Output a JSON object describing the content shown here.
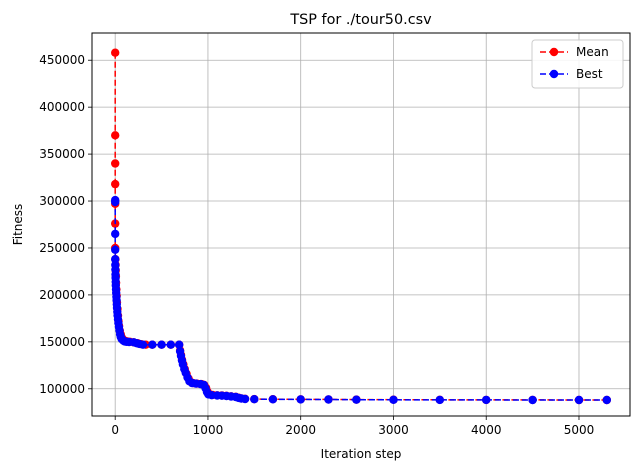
{
  "chart_data": {
    "type": "line",
    "title": "TSP for ./tour50.csv",
    "xlabel": "Iteration step",
    "ylabel": "Fitness",
    "xlim": [
      -250,
      5550
    ],
    "ylim": [
      71000,
      479000
    ],
    "xticks": [
      0,
      1000,
      2000,
      3000,
      4000,
      5000
    ],
    "xtick_labels": [
      "0",
      "1000",
      "2000",
      "3000",
      "4000",
      "5000"
    ],
    "yticks": [
      100000,
      150000,
      200000,
      250000,
      300000,
      350000,
      400000,
      450000
    ],
    "ytick_labels": [
      "100000",
      "150000",
      "200000",
      "250000",
      "300000",
      "350000",
      "400000",
      "450000"
    ],
    "grid": true,
    "legend_position": "top-right",
    "series": [
      {
        "name": "Mean",
        "color": "#ff0000",
        "line_style": "dashed",
        "marker": "circle",
        "points": [
          [
            0,
            458000
          ],
          [
            0,
            370000
          ],
          [
            0,
            340000
          ],
          [
            0,
            318000
          ],
          [
            0,
            297000
          ],
          [
            0,
            276000
          ],
          [
            0,
            250000
          ],
          [
            2,
            238000
          ],
          [
            4,
            232000
          ],
          [
            6,
            226000
          ],
          [
            8,
            220000
          ],
          [
            10,
            213000
          ],
          [
            13,
            206000
          ],
          [
            16,
            199000
          ],
          [
            20,
            192000
          ],
          [
            25,
            185000
          ],
          [
            30,
            178000
          ],
          [
            36,
            172000
          ],
          [
            42,
            167000
          ],
          [
            50,
            162000
          ],
          [
            60,
            158000
          ],
          [
            75,
            154000
          ],
          [
            90,
            152000
          ],
          [
            110,
            151000
          ],
          [
            130,
            150500
          ],
          [
            160,
            150000
          ],
          [
            200,
            149500
          ],
          [
            240,
            148500
          ],
          [
            280,
            147500
          ],
          [
            330,
            147000
          ],
          [
            400,
            147000
          ],
          [
            500,
            147000
          ],
          [
            600,
            147000
          ],
          [
            690,
            147000
          ],
          [
            700,
            141000
          ],
          [
            710,
            136000
          ],
          [
            720,
            131000
          ],
          [
            735,
            126000
          ],
          [
            750,
            121000
          ],
          [
            770,
            116000
          ],
          [
            790,
            111000
          ],
          [
            810,
            107500
          ],
          [
            840,
            106000
          ],
          [
            880,
            105500
          ],
          [
            930,
            105000
          ],
          [
            960,
            104000
          ],
          [
            980,
            101000
          ],
          [
            995,
            97000
          ],
          [
            1010,
            94500
          ],
          [
            1050,
            93500
          ],
          [
            1100,
            93000
          ],
          [
            1150,
            92800
          ],
          [
            1200,
            92500
          ],
          [
            1250,
            92000
          ],
          [
            1300,
            91500
          ],
          [
            1330,
            90500
          ],
          [
            1360,
            89800
          ],
          [
            1400,
            89300
          ],
          [
            1500,
            89000
          ],
          [
            1700,
            88900
          ],
          [
            2000,
            88800
          ],
          [
            2300,
            88700
          ],
          [
            2600,
            88500
          ],
          [
            3000,
            88400
          ],
          [
            3500,
            88300
          ],
          [
            4000,
            88200
          ],
          [
            4500,
            88100
          ],
          [
            5000,
            88050
          ],
          [
            5300,
            88000
          ]
        ]
      },
      {
        "name": "Best",
        "color": "#0000ff",
        "line_style": "dashed",
        "marker": "circle",
        "points": [
          [
            0,
            301000
          ],
          [
            0,
            299000
          ],
          [
            0,
            265000
          ],
          [
            0,
            248000
          ],
          [
            0,
            238000
          ],
          [
            1,
            232000
          ],
          [
            2,
            227000
          ],
          [
            3,
            222000
          ],
          [
            4,
            218000
          ],
          [
            5,
            214000
          ],
          [
            7,
            210000
          ],
          [
            9,
            206000
          ],
          [
            11,
            202000
          ],
          [
            13,
            198000
          ],
          [
            15,
            194000
          ],
          [
            17,
            190000
          ],
          [
            20,
            186000
          ],
          [
            23,
            182000
          ],
          [
            26,
            178000
          ],
          [
            30,
            174000
          ],
          [
            35,
            170000
          ],
          [
            40,
            166000
          ],
          [
            46,
            162000
          ],
          [
            53,
            158000
          ],
          [
            60,
            155000
          ],
          [
            70,
            153000
          ],
          [
            85,
            151500
          ],
          [
            100,
            150500
          ],
          [
            120,
            150000
          ],
          [
            150,
            149800
          ],
          [
            200,
            149500
          ],
          [
            230,
            148500
          ],
          [
            260,
            147800
          ],
          [
            300,
            147000
          ],
          [
            400,
            147000
          ],
          [
            500,
            147000
          ],
          [
            600,
            147000
          ],
          [
            690,
            147000
          ],
          [
            700,
            140000
          ],
          [
            710,
            135000
          ],
          [
            720,
            130000
          ],
          [
            730,
            126000
          ],
          [
            745,
            121000
          ],
          [
            760,
            117000
          ],
          [
            780,
            112000
          ],
          [
            800,
            108000
          ],
          [
            830,
            106000
          ],
          [
            870,
            105500
          ],
          [
            920,
            105000
          ],
          [
            955,
            104000
          ],
          [
            975,
            100500
          ],
          [
            990,
            96500
          ],
          [
            1005,
            94000
          ],
          [
            1040,
            93200
          ],
          [
            1100,
            92800
          ],
          [
            1150,
            92600
          ],
          [
            1200,
            92300
          ],
          [
            1250,
            91800
          ],
          [
            1300,
            91200
          ],
          [
            1330,
            90300
          ],
          [
            1360,
            89600
          ],
          [
            1400,
            89100
          ],
          [
            1500,
            88900
          ],
          [
            1700,
            88800
          ],
          [
            2000,
            88700
          ],
          [
            2300,
            88600
          ],
          [
            2600,
            88400
          ],
          [
            3000,
            88300
          ],
          [
            3500,
            88200
          ],
          [
            4000,
            88100
          ],
          [
            4500,
            88000
          ],
          [
            5000,
            88000
          ],
          [
            5300,
            88000
          ]
        ]
      }
    ]
  }
}
